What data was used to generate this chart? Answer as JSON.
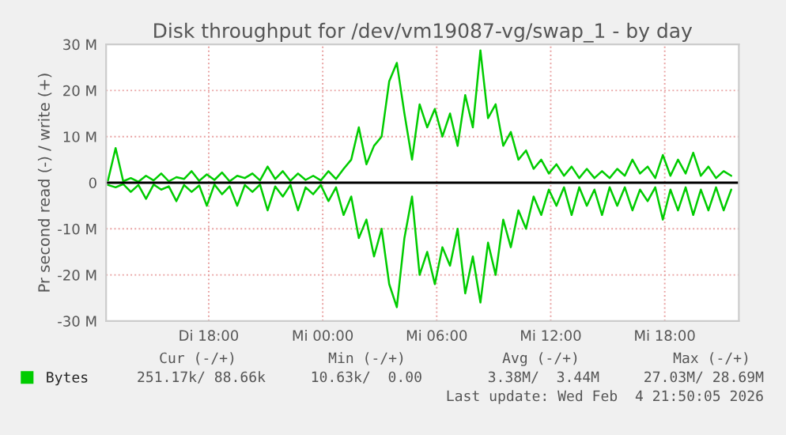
{
  "chart_data": {
    "type": "line",
    "title": "Disk throughput for /dev/vm19087-vg/swap_1 - by day",
    "ylabel": "Pr second read (-) / write (+)",
    "x": [
      "2026-02-03T12:42",
      "2026-02-03T13:06",
      "2026-02-03T13:30",
      "2026-02-03T13:54",
      "2026-02-03T14:18",
      "2026-02-03T14:42",
      "2026-02-03T15:06",
      "2026-02-03T15:30",
      "2026-02-03T15:54",
      "2026-02-03T16:18",
      "2026-02-03T16:42",
      "2026-02-03T17:06",
      "2026-02-03T17:30",
      "2026-02-03T17:54",
      "2026-02-03T18:18",
      "2026-02-03T18:42",
      "2026-02-03T19:06",
      "2026-02-03T19:30",
      "2026-02-03T19:54",
      "2026-02-03T20:18",
      "2026-02-03T20:42",
      "2026-02-03T21:06",
      "2026-02-03T21:30",
      "2026-02-03T21:54",
      "2026-02-03T22:18",
      "2026-02-03T22:42",
      "2026-02-03T23:06",
      "2026-02-03T23:30",
      "2026-02-03T23:54",
      "2026-02-04T00:18",
      "2026-02-04T00:42",
      "2026-02-04T01:06",
      "2026-02-04T01:30",
      "2026-02-04T01:54",
      "2026-02-04T02:18",
      "2026-02-04T02:42",
      "2026-02-04T03:06",
      "2026-02-04T03:30",
      "2026-02-04T03:54",
      "2026-02-04T04:18",
      "2026-02-04T04:42",
      "2026-02-04T05:06",
      "2026-02-04T05:30",
      "2026-02-04T05:54",
      "2026-02-04T06:18",
      "2026-02-04T06:42",
      "2026-02-04T07:06",
      "2026-02-04T07:30",
      "2026-02-04T07:54",
      "2026-02-04T08:18",
      "2026-02-04T08:42",
      "2026-02-04T09:06",
      "2026-02-04T09:30",
      "2026-02-04T09:54",
      "2026-02-04T10:18",
      "2026-02-04T10:42",
      "2026-02-04T11:06",
      "2026-02-04T11:30",
      "2026-02-04T11:54",
      "2026-02-04T12:18",
      "2026-02-04T12:42",
      "2026-02-04T13:06",
      "2026-02-04T13:30",
      "2026-02-04T13:54",
      "2026-02-04T14:18",
      "2026-02-04T14:42",
      "2026-02-04T15:06",
      "2026-02-04T15:30",
      "2026-02-04T15:54",
      "2026-02-04T16:18",
      "2026-02-04T16:42",
      "2026-02-04T17:06",
      "2026-02-04T17:30",
      "2026-02-04T17:54",
      "2026-02-04T18:18",
      "2026-02-04T18:42",
      "2026-02-04T19:06",
      "2026-02-04T19:30",
      "2026-02-04T19:54",
      "2026-02-04T20:18",
      "2026-02-04T20:42",
      "2026-02-04T21:06",
      "2026-02-04T21:30"
    ],
    "series": [
      {
        "name": "Bytes",
        "color": "#00cc00",
        "values": [
          0.5,
          7.5,
          0.3,
          1.0,
          0.2,
          1.5,
          0.5,
          2.0,
          0.3,
          1.2,
          0.8,
          2.5,
          0.4,
          1.8,
          0.6,
          2.2,
          0.3,
          1.5,
          1.0,
          2.0,
          0.5,
          3.5,
          0.8,
          2.5,
          0.4,
          2.0,
          0.6,
          1.5,
          0.5,
          2.5,
          0.8,
          3.0,
          5,
          12,
          4,
          8,
          10,
          22,
          26,
          15,
          5,
          17,
          12,
          16,
          10,
          15,
          8,
          19,
          12,
          28.7,
          14,
          17,
          8,
          11,
          5,
          7,
          3,
          5,
          2,
          4,
          1.5,
          3.5,
          1,
          3,
          1,
          2.5,
          1,
          3,
          1.5,
          5,
          2,
          3.5,
          1,
          6,
          1.5,
          5,
          2,
          6.5,
          1.5,
          3.5,
          1,
          2.5,
          1.5
        ]
      },
      {
        "color": "#00cc00",
        "values": [
          -0.5,
          -1,
          -0.3,
          -2,
          -0.5,
          -3.5,
          -0.4,
          -1.5,
          -0.8,
          -4,
          -0.5,
          -2,
          -0.6,
          -5,
          -0.4,
          -2.5,
          -0.8,
          -5,
          -0.5,
          -2,
          -0.4,
          -6,
          -0.8,
          -3,
          -0.5,
          -6,
          -1,
          -2.5,
          -0.5,
          -4,
          -1,
          -7,
          -3,
          -12,
          -8,
          -16,
          -10,
          -22,
          -27,
          -12,
          -3,
          -20,
          -15,
          -22,
          -14,
          -18,
          -10,
          -24,
          -16,
          -26,
          -13,
          -20,
          -8,
          -14,
          -6,
          -10,
          -3,
          -7,
          -1.5,
          -5,
          -1,
          -7,
          -1,
          -5,
          -1.5,
          -7,
          -1,
          -5,
          -1,
          -6,
          -1.5,
          -4,
          -1,
          -8,
          -1.5,
          -6,
          -1,
          -7,
          -1.5,
          -6,
          -1,
          -6,
          -1.5
        ]
      }
    ],
    "xlim": [
      "2026-02-03T12:36",
      "2026-02-04T21:54"
    ],
    "xticks": [
      {
        "value": "2026-02-03T18:00",
        "label": "Di 18:00"
      },
      {
        "value": "2026-02-04T00:00",
        "label": "Mi 00:00"
      },
      {
        "value": "2026-02-04T06:00",
        "label": "Mi 06:00"
      },
      {
        "value": "2026-02-04T12:00",
        "label": "Mi 12:00"
      },
      {
        "value": "2026-02-04T18:00",
        "label": "Mi 18:00"
      }
    ],
    "ylim": [
      -30,
      30
    ],
    "yticks": [
      {
        "value": -30,
        "label": "-30 M"
      },
      {
        "value": -20,
        "label": "-20 M"
      },
      {
        "value": -10,
        "label": "-10 M"
      },
      0,
      {
        "value": 10,
        "label": "10 M"
      },
      {
        "value": 20,
        "label": "20 M"
      },
      {
        "value": 30,
        "label": "30 M"
      }
    ],
    "ref_lines": [
      {
        "axis": "y",
        "value": 0,
        "color": "#000000"
      }
    ],
    "grid": true,
    "legend": "bottom left",
    "marker": "none",
    "line_style": "solid",
    "annotations": [
      "Cur (-/+)",
      "Min (-/+)",
      "Avg (-/+)",
      "Max (-/+)",
      "251.17k/ 88.66k",
      "10.63k/  0.00",
      "3.38M/  3.44M",
      "27.03M/ 28.69M",
      "Last update: Wed Feb  4 21:50:05 2026"
    ]
  }
}
